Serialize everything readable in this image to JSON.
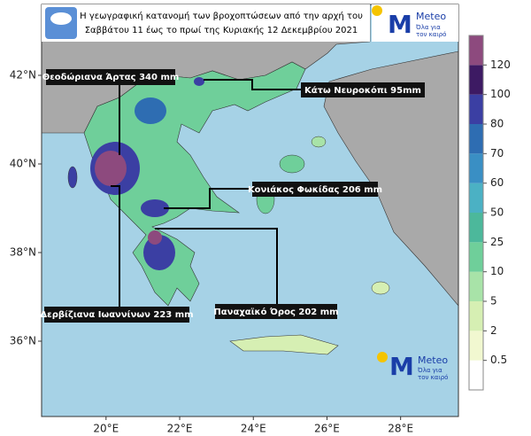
{
  "header": {
    "title_lines": [
      "Η γεωγραφική κατανομή των βροχοπτώσεων από την αρχή του",
      "Σαββάτου 11 έως το πρωί της Κυριακής 12 Δεκεμβρίου 2021"
    ]
  },
  "logo": {
    "brand": "Meteo",
    "slogan_lines": [
      "Όλα για",
      "τον καιρό"
    ]
  },
  "map": {
    "xlim": [
      18.25,
      29.57
    ],
    "ylim": [
      34.3,
      43.6
    ],
    "xticks": [
      {
        "value": 20,
        "label": "20°E"
      },
      {
        "value": 22,
        "label": "22°E"
      },
      {
        "value": 24,
        "label": "24°E"
      },
      {
        "value": 26,
        "label": "26°E"
      },
      {
        "value": 28,
        "label": "28°E"
      }
    ],
    "yticks": [
      {
        "value": 42,
        "label": "42°N"
      },
      {
        "value": 40,
        "label": "40°N"
      },
      {
        "value": 38,
        "label": "38°N"
      },
      {
        "value": 36,
        "label": "36°N"
      }
    ]
  },
  "annotations": [
    "Θεοδώριανα Άρτας 340 mm",
    "Κάτω Νευροκόπι 95mm",
    "Κονιάκος Φωκίδας 206 mm",
    "Δερβίζιανα Ιωαννίνων 223 mm",
    "Παναχαϊκό Όρος 202 mm"
  ],
  "colorbar": {
    "ticks": [
      0.5,
      2,
      5,
      10,
      25,
      50,
      60,
      70,
      80,
      100,
      120
    ],
    "colors": [
      "#ffffff",
      "#f1f8d0",
      "#d6efb3",
      "#a8e3a8",
      "#6fcf9a",
      "#4cb89b",
      "#4bb1c4",
      "#3a8fc4",
      "#2e6db2",
      "#3b3fa3",
      "#3d1a63",
      "#8d4a7e"
    ]
  }
}
